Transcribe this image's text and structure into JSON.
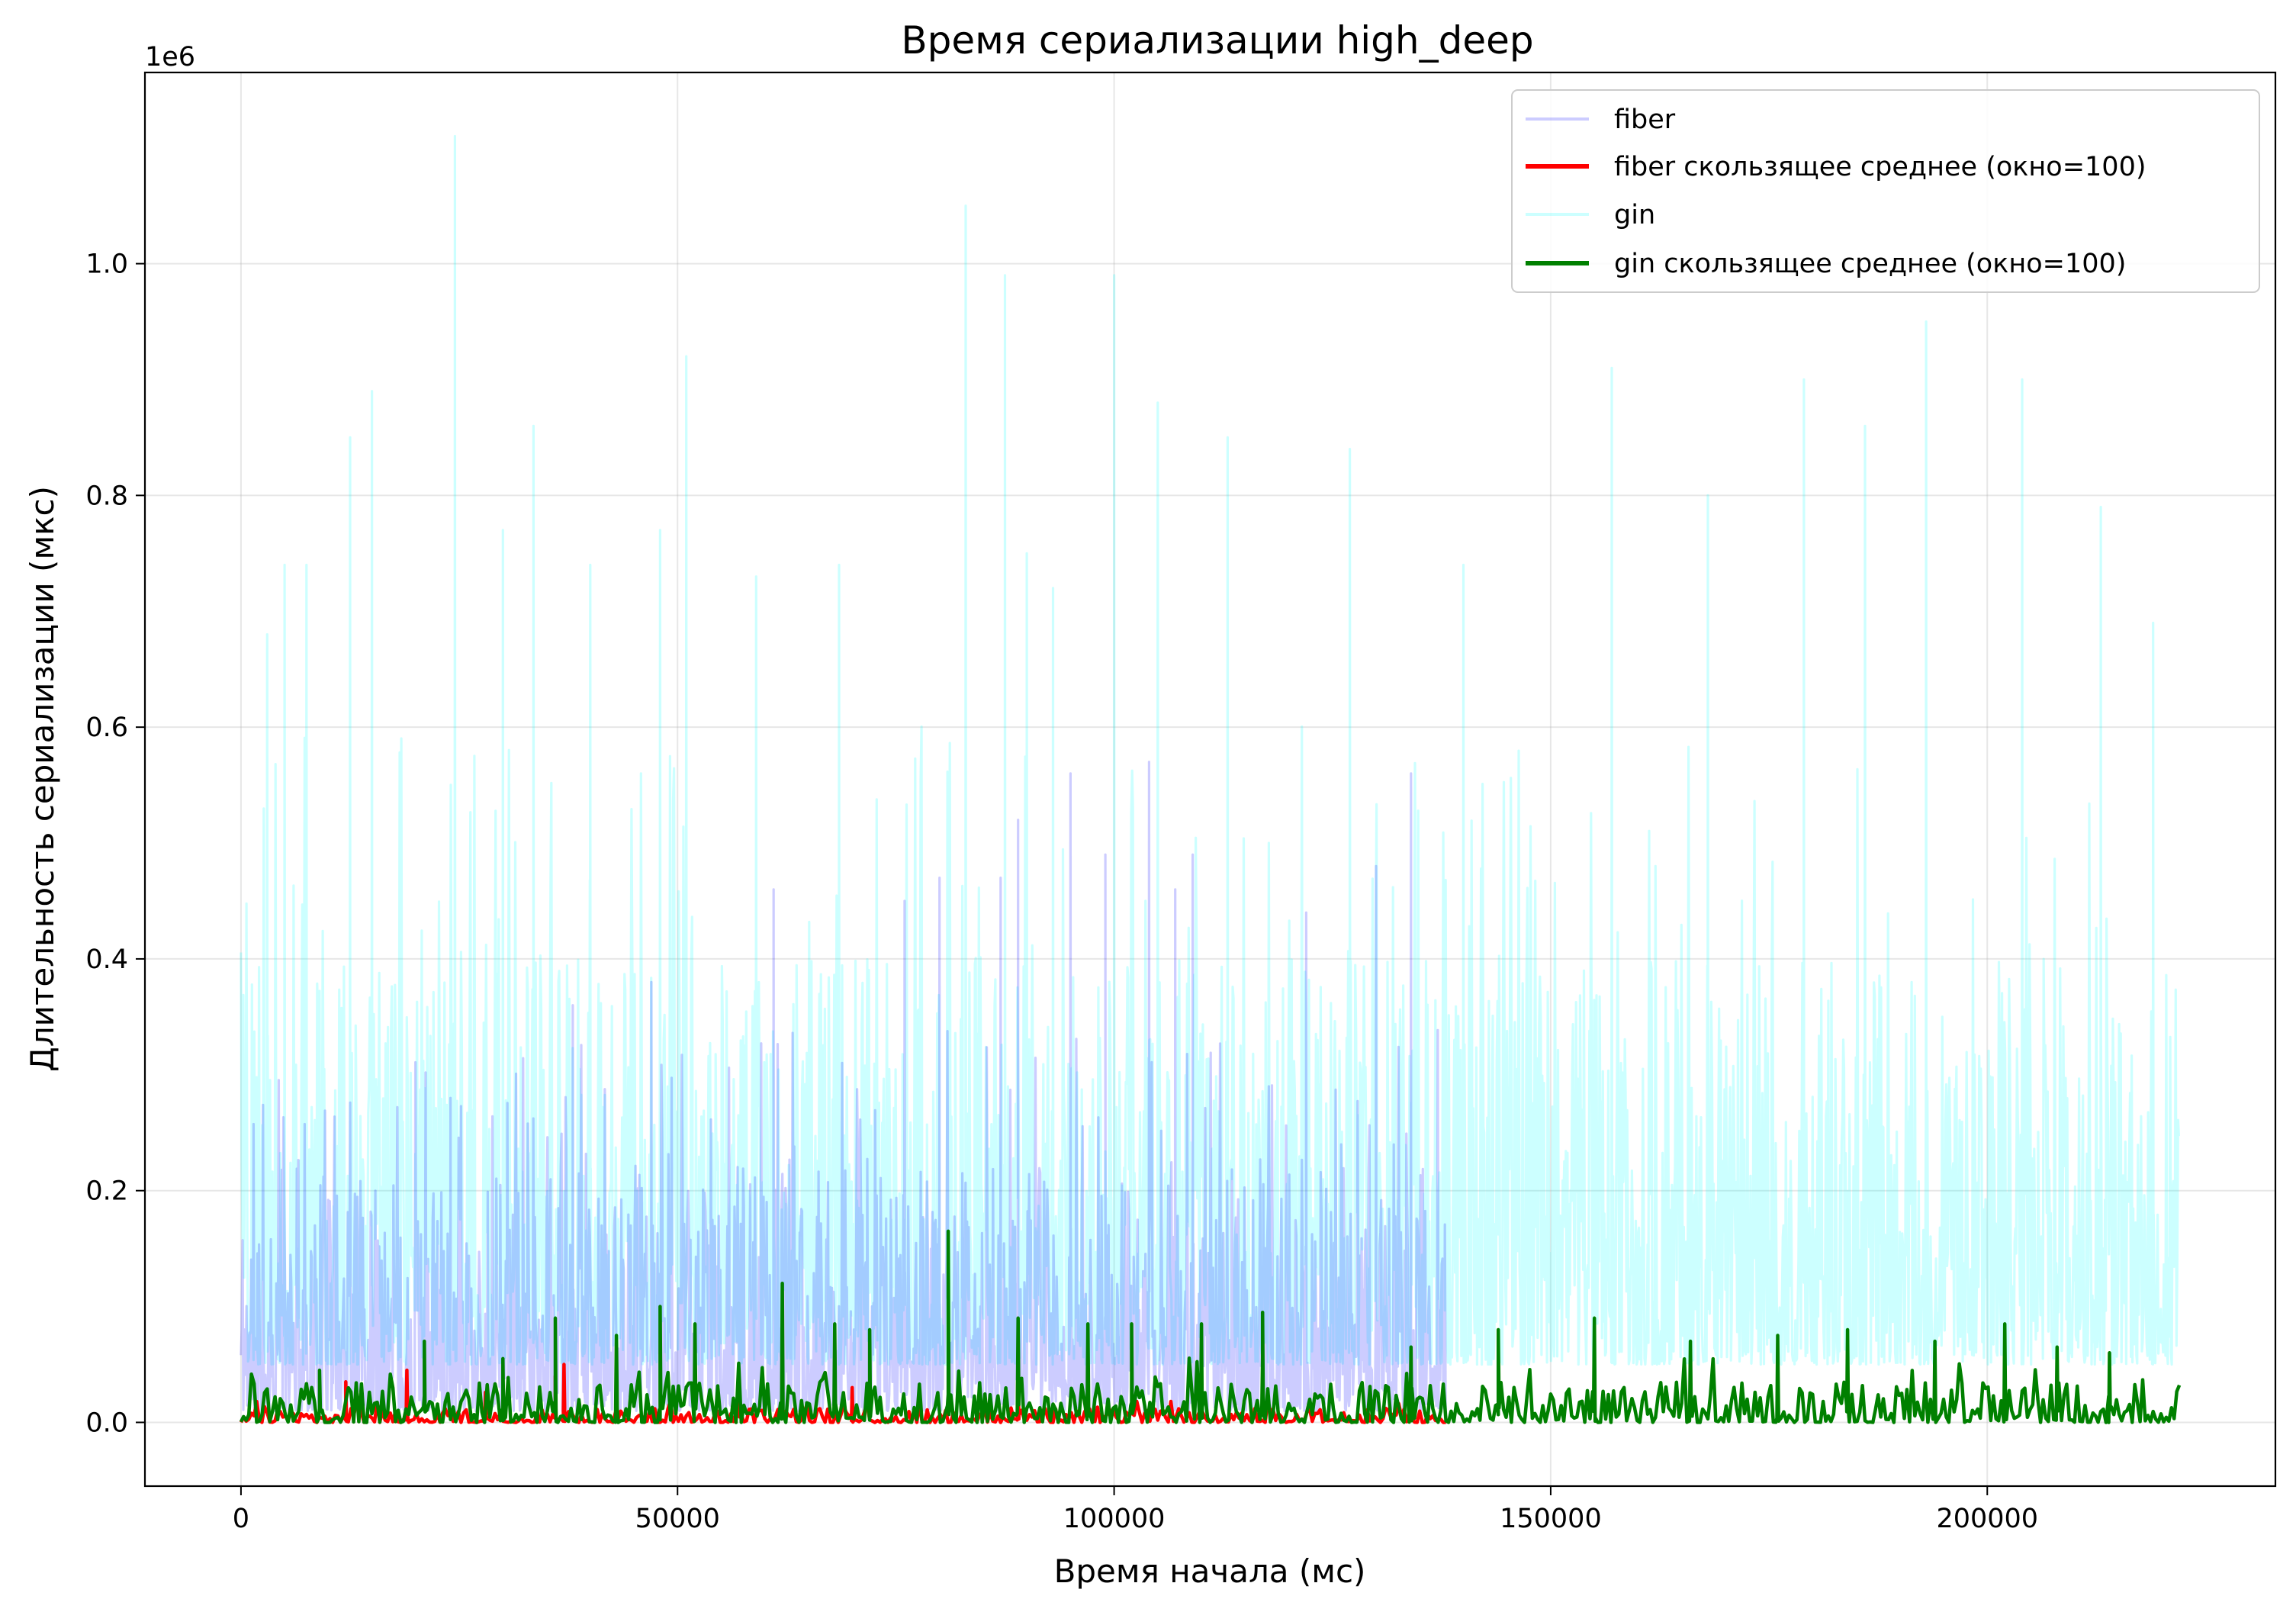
{
  "chart_data": {
    "type": "line",
    "title": "Время сериализации high_deep",
    "xlabel": "Время начала (мс)",
    "ylabel": "Длительность сериализации (мкс)",
    "y_offset_label": "1e6",
    "xlim": [
      -11000,
      233000
    ],
    "ylim": [
      -0.055,
      1.165
    ],
    "y_scale": 1000000,
    "x_ticks": [
      0,
      50000,
      100000,
      150000,
      200000
    ],
    "x_tick_labels": [
      "0",
      "50000",
      "100000",
      "150000",
      "200000"
    ],
    "y_ticks": [
      0.0,
      0.2,
      0.4,
      0.6,
      0.8,
      1.0
    ],
    "y_tick_labels": [
      "0.0",
      "0.2",
      "0.4",
      "0.6",
      "0.8",
      "1.0"
    ],
    "grid": true,
    "legend_position": "top-right",
    "series": [
      {
        "name": "fiber",
        "color": "#0000ff",
        "opacity": 0.2,
        "x_range": [
          0,
          138000
        ],
        "base_band": [
          0.01,
          0.22
        ],
        "peaks": [
          [
            24000,
            0.28
          ],
          [
            38000,
            0.36
          ],
          [
            47000,
            0.38
          ],
          [
            61000,
            0.46
          ],
          [
            76000,
            0.45
          ],
          [
            80000,
            0.47
          ],
          [
            87000,
            0.47
          ],
          [
            89000,
            0.52
          ],
          [
            95000,
            0.56
          ],
          [
            99000,
            0.49
          ],
          [
            104000,
            0.57
          ],
          [
            107000,
            0.46
          ],
          [
            109000,
            0.49
          ],
          [
            122000,
            0.44
          ],
          [
            130000,
            0.48
          ],
          [
            134000,
            0.56
          ]
        ]
      },
      {
        "name": "fiber скользящее среднее (окно=100)",
        "color": "#ff0000",
        "x_range": [
          0,
          138000
        ],
        "base_band": [
          0.0,
          0.012
        ],
        "peaks": [
          [
            12000,
            0.035
          ],
          [
            19000,
            0.045
          ],
          [
            28000,
            0.026
          ],
          [
            36000,
            0.04
          ],
          [
            37000,
            0.05
          ],
          [
            57000,
            0.04
          ],
          [
            70000,
            0.03
          ],
          [
            89000,
            0.06
          ]
        ]
      },
      {
        "name": "gin",
        "color": "#00ffff",
        "opacity": 0.2,
        "x_range": [
          0,
          222000
        ],
        "base_band": [
          0.05,
          0.4
        ],
        "peaks": [
          [
            3000,
            0.68
          ],
          [
            5000,
            0.74
          ],
          [
            7500,
            0.74
          ],
          [
            12500,
            0.85
          ],
          [
            15000,
            0.89
          ],
          [
            24500,
            1.11
          ],
          [
            30000,
            0.77
          ],
          [
            33500,
            0.86
          ],
          [
            40000,
            0.74
          ],
          [
            48000,
            0.77
          ],
          [
            51000,
            0.92
          ],
          [
            59000,
            0.73
          ],
          [
            68500,
            0.74
          ],
          [
            83000,
            1.05
          ],
          [
            87500,
            0.99
          ],
          [
            90000,
            0.75
          ],
          [
            93000,
            0.72
          ],
          [
            100000,
            0.99
          ],
          [
            105000,
            0.88
          ],
          [
            113000,
            0.85
          ],
          [
            127000,
            0.84
          ],
          [
            140000,
            0.74
          ],
          [
            157000,
            0.91
          ],
          [
            168000,
            0.8
          ],
          [
            179000,
            0.9
          ],
          [
            186000,
            0.86
          ],
          [
            193000,
            0.95
          ],
          [
            204000,
            0.9
          ],
          [
            213000,
            0.79
          ],
          [
            219000,
            0.69
          ]
        ]
      },
      {
        "name": "gin скользящее среднее (окно=100)",
        "color": "#008000",
        "x_range": [
          0,
          222000
        ],
        "base_band": [
          0.0,
          0.035
        ],
        "peaks": [
          [
            9000,
            0.045
          ],
          [
            21000,
            0.07
          ],
          [
            30000,
            0.055
          ],
          [
            36000,
            0.09
          ],
          [
            43000,
            0.075
          ],
          [
            48000,
            0.1
          ],
          [
            52000,
            0.085
          ],
          [
            62000,
            0.12
          ],
          [
            68000,
            0.085
          ],
          [
            72000,
            0.08
          ],
          [
            81000,
            0.165
          ],
          [
            89000,
            0.09
          ],
          [
            97000,
            0.085
          ],
          [
            102000,
            0.085
          ],
          [
            110000,
            0.085
          ],
          [
            117000,
            0.095
          ],
          [
            134000,
            0.065
          ],
          [
            144000,
            0.08
          ],
          [
            155000,
            0.09
          ],
          [
            166000,
            0.07
          ],
          [
            176000,
            0.075
          ],
          [
            184000,
            0.08
          ],
          [
            194000,
            0.07
          ],
          [
            202000,
            0.085
          ],
          [
            208000,
            0.065
          ],
          [
            214000,
            0.06
          ]
        ]
      }
    ]
  }
}
